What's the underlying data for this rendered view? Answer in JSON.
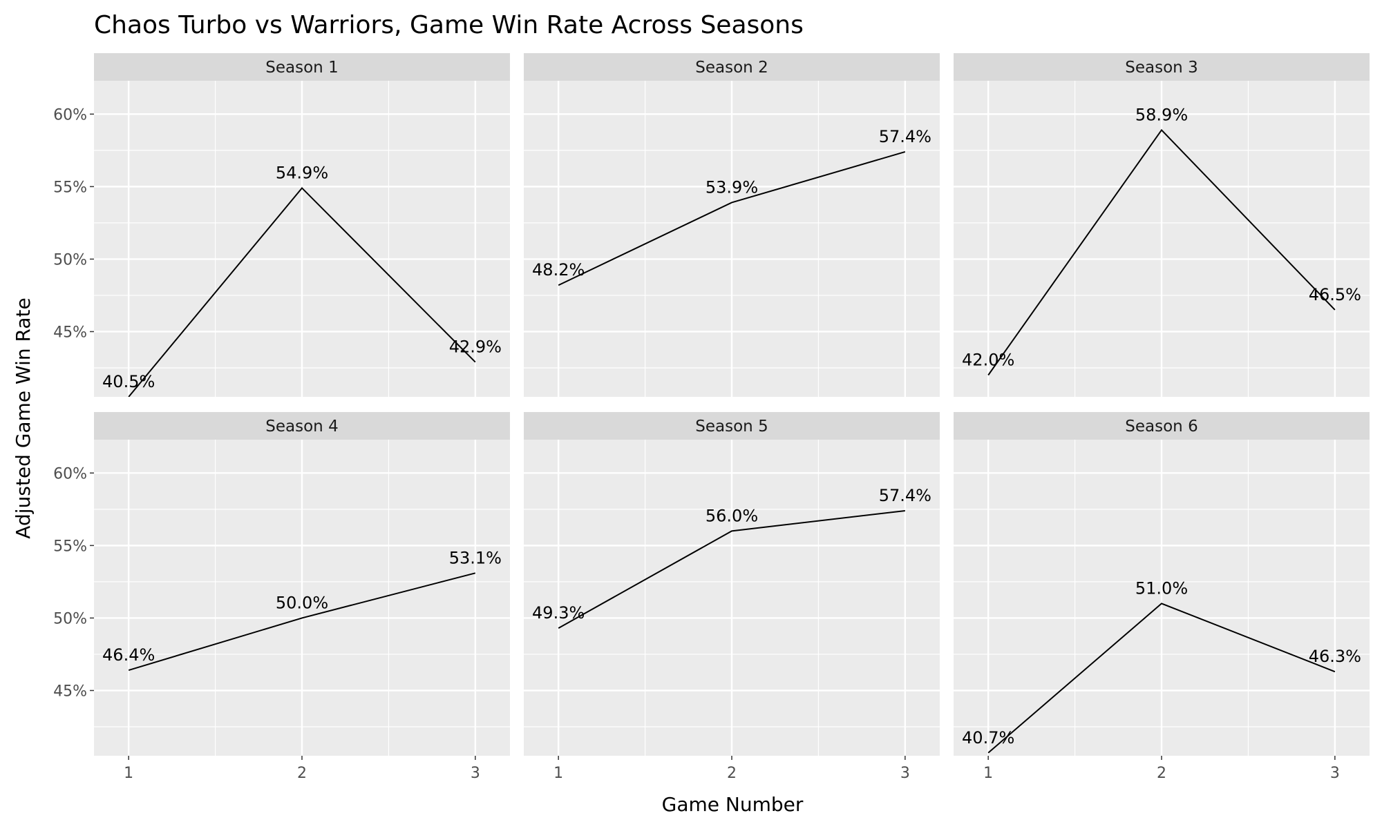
{
  "chart_data": {
    "type": "line",
    "title": "Chaos Turbo vs Warriors, Game Win Rate Across Seasons",
    "xlabel": "Game Number",
    "ylabel": "Adjusted Game Win Rate",
    "x": [
      1,
      2,
      3
    ],
    "x_tick_labels": [
      "1",
      "2",
      "3"
    ],
    "y_ticks": [
      45,
      50,
      55,
      60
    ],
    "y_tick_labels": [
      "45%",
      "50%",
      "55%",
      "60%"
    ],
    "ylim": [
      40.5,
      62.3
    ],
    "xlim": [
      0.8,
      3.2
    ],
    "grid": true,
    "layout": "facet grid, 2 rows x 3 columns",
    "colors": {
      "panel_background": "#ebebeb",
      "strip_background": "#d9d9d9",
      "grid": "#ffffff",
      "line": "#000000"
    },
    "series": [
      {
        "name": "Season 1",
        "values": [
          40.5,
          54.9,
          42.9
        ],
        "labels": [
          "40.5%",
          "54.9%",
          "42.9%"
        ]
      },
      {
        "name": "Season 2",
        "values": [
          48.2,
          53.9,
          57.4
        ],
        "labels": [
          "48.2%",
          "53.9%",
          "57.4%"
        ]
      },
      {
        "name": "Season 3",
        "values": [
          42.0,
          58.9,
          46.5
        ],
        "labels": [
          "42.0%",
          "58.9%",
          "46.5%"
        ]
      },
      {
        "name": "Season 4",
        "values": [
          46.4,
          50.0,
          53.1
        ],
        "labels": [
          "46.4%",
          "50.0%",
          "53.1%"
        ]
      },
      {
        "name": "Season 5",
        "values": [
          49.3,
          56.0,
          57.4
        ],
        "labels": [
          "49.3%",
          "56.0%",
          "57.4%"
        ]
      },
      {
        "name": "Season 6",
        "values": [
          40.7,
          51.0,
          46.3
        ],
        "labels": [
          "40.7%",
          "51.0%",
          "46.3%"
        ]
      }
    ]
  }
}
